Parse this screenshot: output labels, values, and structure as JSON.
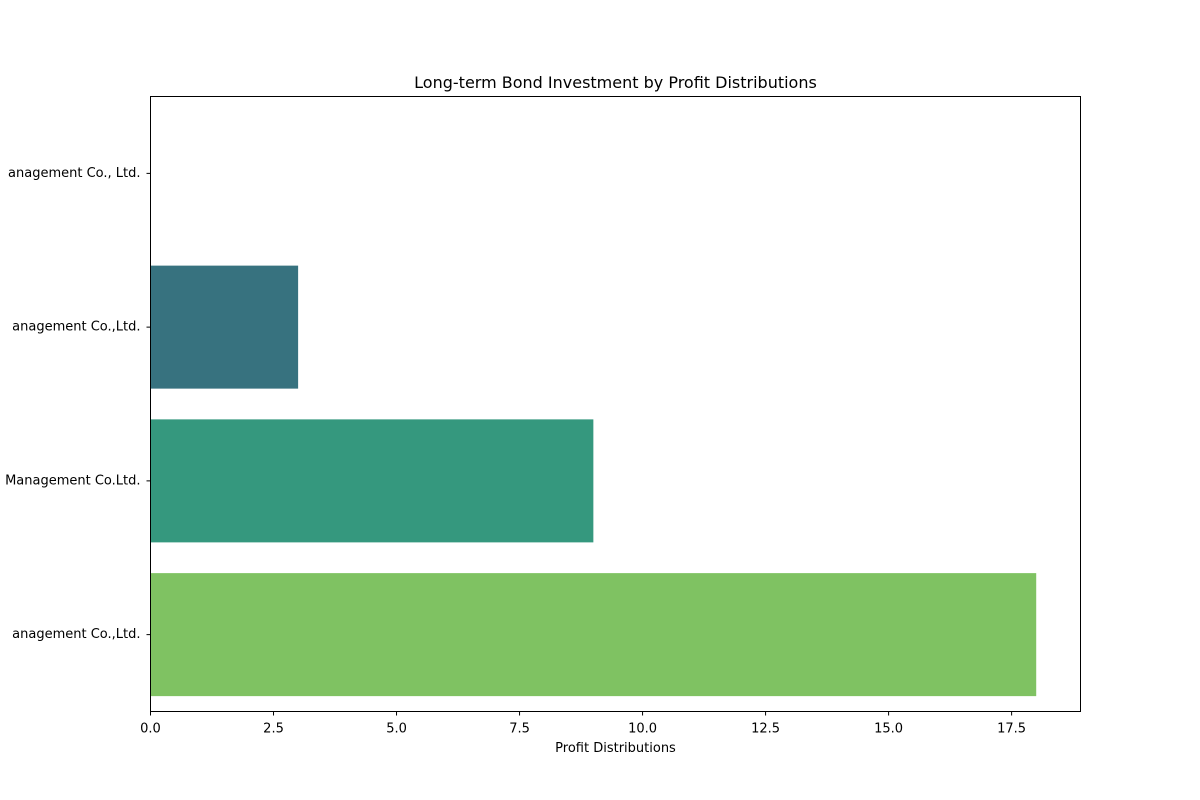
{
  "chart_data": {
    "type": "bar",
    "orientation": "horizontal",
    "title": "Long-term Bond Investment by Profit Distributions",
    "xlabel": "Profit Distributions",
    "ylabel": "",
    "categories": [
      "anagement Co.,Ltd.",
      "Management Co.Ltd.",
      "anagement Co.,Ltd.",
      "anagement Co., Ltd."
    ],
    "values": [
      18,
      9,
      3,
      0
    ],
    "colors": [
      "#7fc262",
      "#35987e",
      "#37727f",
      "#46307d"
    ],
    "xlim": [
      0,
      18.9
    ],
    "xticks": [
      0.0,
      2.5,
      5.0,
      7.5,
      10.0,
      12.5,
      15.0,
      17.5
    ],
    "xtick_labels": [
      "0.0",
      "2.5",
      "5.0",
      "7.5",
      "10.0",
      "12.5",
      "15.0",
      "17.5"
    ],
    "grid": false,
    "legend": "none"
  }
}
